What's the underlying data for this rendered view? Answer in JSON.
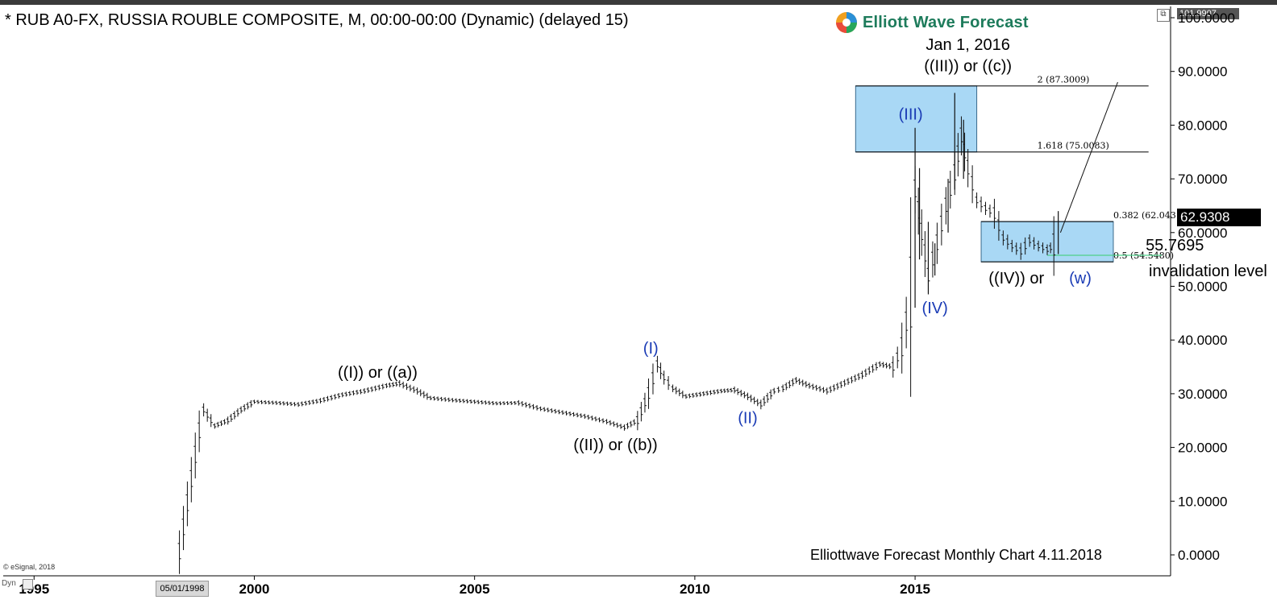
{
  "header": {
    "title": "* RUB A0-FX, RUSSIA ROUBLE COMPOSITE, M, 00:00-00:00 (Dynamic) (delayed 15)",
    "logo_text": "Elliott Wave Forecast",
    "high_tag": "101.9907",
    "last_price_tag": "62.9308"
  },
  "footer": {
    "caption": "Elliottwave Forecast Monthly Chart 4.11.2018",
    "copyright": "© eSignal, 2018",
    "dyn_label": "Dyn",
    "date_tag": "05/01/1998"
  },
  "colors": {
    "wave_blue": "#1a3bb5",
    "box_fill": "#a9d8f5",
    "box_stroke": "#3a6a8c",
    "invalidation_green": "#4fd08a"
  },
  "chart_data": {
    "type": "ohlc",
    "y_ticks": [
      "0.0000",
      "10.0000",
      "20.0000",
      "30.0000",
      "40.0000",
      "50.0000",
      "60.0000",
      "70.0000",
      "80.0000",
      "90.0000",
      "100.0000"
    ],
    "ylim": [
      0,
      100
    ],
    "x_ticks": [
      "1995",
      "2000",
      "2005",
      "2010",
      "2015"
    ],
    "x_tick_years": [
      1995,
      2000,
      2005,
      2010,
      2015
    ],
    "xlim": [
      1994.3,
      2020.8
    ],
    "price_path": [
      [
        1998.3,
        0.5
      ],
      [
        1998.75,
        23
      ],
      [
        1998.85,
        27
      ],
      [
        1999.1,
        24
      ],
      [
        1999.4,
        25
      ],
      [
        1999.7,
        27
      ],
      [
        2000.0,
        28.5
      ],
      [
        2000.5,
        28.3
      ],
      [
        2001.0,
        28.0
      ],
      [
        2001.5,
        28.7
      ],
      [
        2002.0,
        29.8
      ],
      [
        2002.5,
        30.5
      ],
      [
        2003.0,
        31.5
      ],
      [
        2003.3,
        31.9
      ],
      [
        2003.7,
        30.5
      ],
      [
        2004.0,
        29.2
      ],
      [
        2004.5,
        28.8
      ],
      [
        2005.0,
        28.5
      ],
      [
        2005.5,
        28.2
      ],
      [
        2006.0,
        28.3
      ],
      [
        2006.5,
        27.2
      ],
      [
        2007.0,
        26.5
      ],
      [
        2007.5,
        25.8
      ],
      [
        2008.0,
        24.8
      ],
      [
        2008.4,
        23.7
      ],
      [
        2008.7,
        25.0
      ],
      [
        2008.95,
        30.0
      ],
      [
        2009.15,
        35.5
      ],
      [
        2009.3,
        33.0
      ],
      [
        2009.5,
        31.0
      ],
      [
        2009.8,
        29.5
      ],
      [
        2010.2,
        30.0
      ],
      [
        2010.6,
        30.5
      ],
      [
        2010.9,
        30.7
      ],
      [
        2011.2,
        29.5
      ],
      [
        2011.5,
        28.0
      ],
      [
        2011.8,
        30.5
      ],
      [
        2012.0,
        31.0
      ],
      [
        2012.3,
        32.5
      ],
      [
        2012.6,
        31.5
      ],
      [
        2013.0,
        30.5
      ],
      [
        2013.4,
        32.0
      ],
      [
        2013.8,
        33.5
      ],
      [
        2014.2,
        35.5
      ],
      [
        2014.5,
        35.0
      ],
      [
        2014.7,
        38.5
      ],
      [
        2014.9,
        48.0
      ],
      [
        2015.0,
        68.0
      ],
      [
        2015.15,
        60.0
      ],
      [
        2015.3,
        52.0
      ],
      [
        2015.5,
        58.0
      ],
      [
        2015.7,
        65.0
      ],
      [
        2015.9,
        71.0
      ],
      [
        2016.05,
        78.0
      ],
      [
        2016.2,
        72.0
      ],
      [
        2016.4,
        66.0
      ],
      [
        2016.6,
        64.5
      ],
      [
        2016.8,
        63.5
      ],
      [
        2017.0,
        59.0
      ],
      [
        2017.2,
        57.5
      ],
      [
        2017.4,
        56.5
      ],
      [
        2017.6,
        58.5
      ],
      [
        2017.8,
        57.5
      ],
      [
        2018.0,
        56.8
      ],
      [
        2018.15,
        57.5
      ],
      [
        2018.25,
        62.9
      ]
    ],
    "spikes": [
      {
        "x": 2015.0,
        "high": 79.5,
        "low": 46.0
      },
      {
        "x": 2015.1,
        "high": 72.0,
        "low": 55.0
      },
      {
        "x": 2015.3,
        "high": 62.0,
        "low": 48.5
      },
      {
        "x": 2015.45,
        "high": 58.0,
        "low": 52.0
      },
      {
        "x": 2015.75,
        "high": 70.0,
        "low": 60.0
      },
      {
        "x": 2015.9,
        "high": 86.0,
        "low": 68.0
      },
      {
        "x": 2016.1,
        "high": 81.0,
        "low": 70.0
      },
      {
        "x": 2018.25,
        "high": 64.0,
        "low": 56.0
      }
    ],
    "boxes": [
      {
        "x0": 2013.65,
        "x1": 2016.4,
        "y0": 75.0083,
        "y1": 87.3009
      },
      {
        "x0": 2016.5,
        "x1": 2019.5,
        "y0": 54.548,
        "y1": 62.0431
      }
    ],
    "fib_lines": [
      {
        "x0": 2013.65,
        "x1": 2020.3,
        "y": 87.3009,
        "label": "2 (87.3009)"
      },
      {
        "x0": 2013.65,
        "x1": 2020.3,
        "y": 75.0083,
        "label": "1.618 (75.0083)"
      },
      {
        "x0": 2016.5,
        "x1": 2019.5,
        "y": 62.0431,
        "label": "0.382 (62.0431)"
      },
      {
        "x0": 2016.5,
        "x1": 2019.5,
        "y": 54.548,
        "label": "0.5 (54.5480)"
      }
    ],
    "projection_line": {
      "x0": 2018.3,
      "y0": 60.0,
      "x1": 2019.6,
      "y1": 88.0
    },
    "invalidation": {
      "value": 55.7695,
      "label": "55.7695",
      "text": "invalidation level",
      "x0": 2018.0,
      "x1": 2020.6
    },
    "annotations": [
      {
        "text": "Jan 1, 2016",
        "x": 2016.2,
        "y": 94.0,
        "color": "black"
      },
      {
        "text": "((III)) or ((c))",
        "x": 2016.2,
        "y": 90.0,
        "color": "black"
      },
      {
        "text": "(III)",
        "x": 2014.9,
        "y": 81.0,
        "color": "blue"
      },
      {
        "text": "(IV)",
        "x": 2015.45,
        "y": 45.0,
        "color": "blue"
      },
      {
        "text": "(I)",
        "x": 2009.0,
        "y": 37.5,
        "color": "blue"
      },
      {
        "text": "(II)",
        "x": 2011.2,
        "y": 24.5,
        "color": "blue"
      },
      {
        "text": "((I)) or ((a))",
        "x": 2002.8,
        "y": 33.0,
        "color": "black"
      },
      {
        "text": "((II)) or ((b))",
        "x": 2008.2,
        "y": 19.5,
        "color": "black"
      },
      {
        "text": "((IV)) or",
        "x": 2017.3,
        "y": 50.5,
        "color": "black"
      },
      {
        "text": "(w)",
        "x": 2018.75,
        "y": 50.5,
        "color": "blue"
      }
    ]
  }
}
